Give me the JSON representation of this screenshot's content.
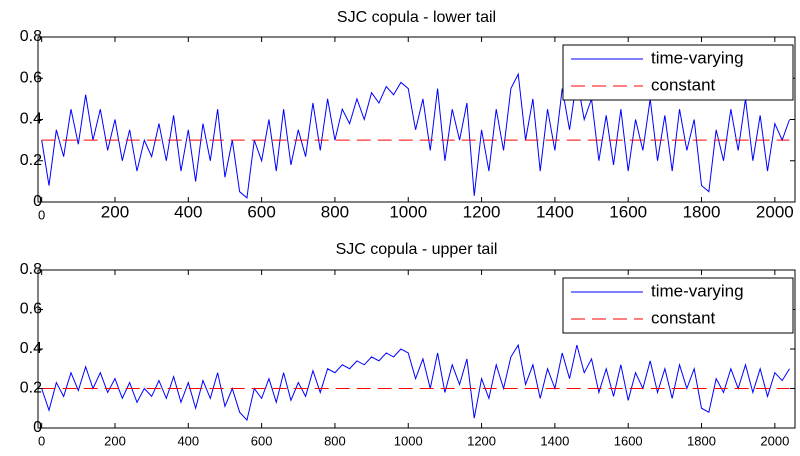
{
  "chart_data": [
    {
      "type": "line",
      "title": "SJC copula - lower tail",
      "x": [
        0,
        20,
        40,
        60,
        80,
        100,
        120,
        140,
        160,
        180,
        200,
        220,
        240,
        260,
        280,
        300,
        320,
        340,
        360,
        380,
        400,
        420,
        440,
        460,
        480,
        500,
        520,
        540,
        560,
        580,
        600,
        620,
        640,
        660,
        680,
        700,
        720,
        740,
        760,
        780,
        800,
        820,
        840,
        860,
        880,
        900,
        920,
        940,
        960,
        980,
        1000,
        1020,
        1040,
        1060,
        1080,
        1100,
        1120,
        1140,
        1160,
        1180,
        1200,
        1220,
        1240,
        1260,
        1280,
        1300,
        1320,
        1340,
        1360,
        1380,
        1400,
        1420,
        1440,
        1460,
        1480,
        1500,
        1520,
        1540,
        1560,
        1580,
        1600,
        1620,
        1640,
        1660,
        1680,
        1700,
        1720,
        1740,
        1760,
        1780,
        1800,
        1820,
        1840,
        1860,
        1880,
        1900,
        1920,
        1940,
        1960,
        1980,
        2000,
        2020,
        2040
      ],
      "series": [
        {
          "name": "time-varying",
          "color": "#0000ff",
          "line_style": "solid",
          "values": [
            0.3,
            0.08,
            0.35,
            0.22,
            0.45,
            0.28,
            0.52,
            0.3,
            0.45,
            0.25,
            0.4,
            0.2,
            0.35,
            0.15,
            0.3,
            0.22,
            0.38,
            0.2,
            0.42,
            0.15,
            0.35,
            0.1,
            0.38,
            0.2,
            0.45,
            0.12,
            0.3,
            0.05,
            0.02,
            0.3,
            0.2,
            0.4,
            0.15,
            0.45,
            0.18,
            0.35,
            0.22,
            0.48,
            0.25,
            0.5,
            0.3,
            0.45,
            0.38,
            0.5,
            0.4,
            0.53,
            0.48,
            0.56,
            0.52,
            0.58,
            0.55,
            0.35,
            0.5,
            0.25,
            0.55,
            0.2,
            0.45,
            0.3,
            0.48,
            0.03,
            0.35,
            0.15,
            0.45,
            0.25,
            0.55,
            0.62,
            0.3,
            0.5,
            0.15,
            0.45,
            0.25,
            0.55,
            0.35,
            0.6,
            0.4,
            0.5,
            0.2,
            0.42,
            0.18,
            0.45,
            0.15,
            0.4,
            0.25,
            0.5,
            0.2,
            0.42,
            0.15,
            0.45,
            0.25,
            0.4,
            0.08,
            0.05,
            0.35,
            0.2,
            0.45,
            0.25,
            0.5,
            0.2,
            0.42,
            0.15,
            0.38,
            0.3,
            0.4
          ]
        },
        {
          "name": "constant",
          "color": "#ff0000",
          "line_style": "dashed",
          "values": [
            0.3,
            0.3,
            0.3,
            0.3,
            0.3,
            0.3,
            0.3,
            0.3,
            0.3,
            0.3,
            0.3,
            0.3,
            0.3,
            0.3,
            0.3,
            0.3,
            0.3,
            0.3,
            0.3,
            0.3,
            0.3,
            0.3,
            0.3,
            0.3,
            0.3,
            0.3,
            0.3,
            0.3,
            0.3,
            0.3,
            0.3,
            0.3,
            0.3,
            0.3,
            0.3,
            0.3,
            0.3,
            0.3,
            0.3,
            0.3,
            0.3,
            0.3,
            0.3,
            0.3,
            0.3,
            0.3,
            0.3,
            0.3,
            0.3,
            0.3,
            0.3,
            0.3,
            0.3,
            0.3,
            0.3,
            0.3,
            0.3,
            0.3,
            0.3,
            0.3,
            0.3,
            0.3,
            0.3,
            0.3,
            0.3,
            0.3,
            0.3,
            0.3,
            0.3,
            0.3,
            0.3,
            0.3,
            0.3,
            0.3,
            0.3,
            0.3,
            0.3,
            0.3,
            0.3,
            0.3,
            0.3,
            0.3,
            0.3,
            0.3,
            0.3,
            0.3,
            0.3,
            0.3,
            0.3,
            0.3,
            0.3,
            0.3,
            0.3,
            0.3,
            0.3,
            0.3,
            0.3,
            0.3,
            0.3,
            0.3,
            0.3,
            0.3,
            0.3
          ]
        }
      ],
      "xlim": [
        -10,
        2055
      ],
      "xticks": [
        0,
        200,
        400,
        600,
        800,
        1000,
        1200,
        1400,
        1600,
        1800,
        2000
      ],
      "ylim": [
        0,
        0.8
      ],
      "yticks": [
        0,
        0.2,
        0.4,
        0.6,
        0.8
      ],
      "legend": "northeast",
      "grid": false
    },
    {
      "type": "line",
      "title": "SJC copula - upper tail",
      "x": [
        0,
        20,
        40,
        60,
        80,
        100,
        120,
        140,
        160,
        180,
        200,
        220,
        240,
        260,
        280,
        300,
        320,
        340,
        360,
        380,
        400,
        420,
        440,
        460,
        480,
        500,
        520,
        540,
        560,
        580,
        600,
        620,
        640,
        660,
        680,
        700,
        720,
        740,
        760,
        780,
        800,
        820,
        840,
        860,
        880,
        900,
        920,
        940,
        960,
        980,
        1000,
        1020,
        1040,
        1060,
        1080,
        1100,
        1120,
        1140,
        1160,
        1180,
        1200,
        1220,
        1240,
        1260,
        1280,
        1300,
        1320,
        1340,
        1360,
        1380,
        1400,
        1420,
        1440,
        1460,
        1480,
        1500,
        1520,
        1540,
        1560,
        1580,
        1600,
        1620,
        1640,
        1660,
        1680,
        1700,
        1720,
        1740,
        1760,
        1780,
        1800,
        1820,
        1840,
        1860,
        1880,
        1900,
        1920,
        1940,
        1960,
        1980,
        2000,
        2020,
        2040
      ],
      "series": [
        {
          "name": "time-varying",
          "color": "#0000ff",
          "line_style": "solid",
          "values": [
            0.2,
            0.09,
            0.23,
            0.16,
            0.28,
            0.19,
            0.31,
            0.2,
            0.28,
            0.18,
            0.25,
            0.15,
            0.23,
            0.13,
            0.2,
            0.16,
            0.24,
            0.15,
            0.26,
            0.13,
            0.23,
            0.1,
            0.24,
            0.15,
            0.28,
            0.11,
            0.2,
            0.08,
            0.04,
            0.2,
            0.15,
            0.25,
            0.13,
            0.28,
            0.14,
            0.23,
            0.16,
            0.29,
            0.18,
            0.3,
            0.28,
            0.32,
            0.3,
            0.34,
            0.32,
            0.36,
            0.34,
            0.38,
            0.36,
            0.4,
            0.38,
            0.25,
            0.35,
            0.2,
            0.38,
            0.18,
            0.32,
            0.22,
            0.35,
            0.05,
            0.25,
            0.15,
            0.32,
            0.2,
            0.36,
            0.42,
            0.22,
            0.32,
            0.15,
            0.3,
            0.2,
            0.38,
            0.25,
            0.42,
            0.28,
            0.35,
            0.18,
            0.3,
            0.16,
            0.32,
            0.14,
            0.28,
            0.2,
            0.34,
            0.18,
            0.3,
            0.15,
            0.32,
            0.2,
            0.3,
            0.1,
            0.08,
            0.25,
            0.18,
            0.3,
            0.2,
            0.32,
            0.18,
            0.3,
            0.16,
            0.28,
            0.24,
            0.3
          ]
        },
        {
          "name": "constant",
          "color": "#ff0000",
          "line_style": "dashed",
          "values": [
            0.2,
            0.2,
            0.2,
            0.2,
            0.2,
            0.2,
            0.2,
            0.2,
            0.2,
            0.2,
            0.2,
            0.2,
            0.2,
            0.2,
            0.2,
            0.2,
            0.2,
            0.2,
            0.2,
            0.2,
            0.2,
            0.2,
            0.2,
            0.2,
            0.2,
            0.2,
            0.2,
            0.2,
            0.2,
            0.2,
            0.2,
            0.2,
            0.2,
            0.2,
            0.2,
            0.2,
            0.2,
            0.2,
            0.2,
            0.2,
            0.2,
            0.2,
            0.2,
            0.2,
            0.2,
            0.2,
            0.2,
            0.2,
            0.2,
            0.2,
            0.2,
            0.2,
            0.2,
            0.2,
            0.2,
            0.2,
            0.2,
            0.2,
            0.2,
            0.2,
            0.2,
            0.2,
            0.2,
            0.2,
            0.2,
            0.2,
            0.2,
            0.2,
            0.2,
            0.2,
            0.2,
            0.2,
            0.2,
            0.2,
            0.2,
            0.2,
            0.2,
            0.2,
            0.2,
            0.2,
            0.2,
            0.2,
            0.2,
            0.2,
            0.2,
            0.2,
            0.2,
            0.2,
            0.2,
            0.2,
            0.2,
            0.2,
            0.2,
            0.2,
            0.2,
            0.2,
            0.2,
            0.2,
            0.2,
            0.2,
            0.2,
            0.2,
            0.2
          ]
        }
      ],
      "xlim": [
        -10,
        2055
      ],
      "xticks": [
        0,
        200,
        400,
        600,
        800,
        1000,
        1200,
        1400,
        1600,
        1800,
        2000
      ],
      "ylim": [
        0,
        0.8
      ],
      "yticks": [
        0,
        0.2,
        0.4,
        0.6,
        0.8
      ],
      "legend": "northeast",
      "grid": false
    }
  ]
}
